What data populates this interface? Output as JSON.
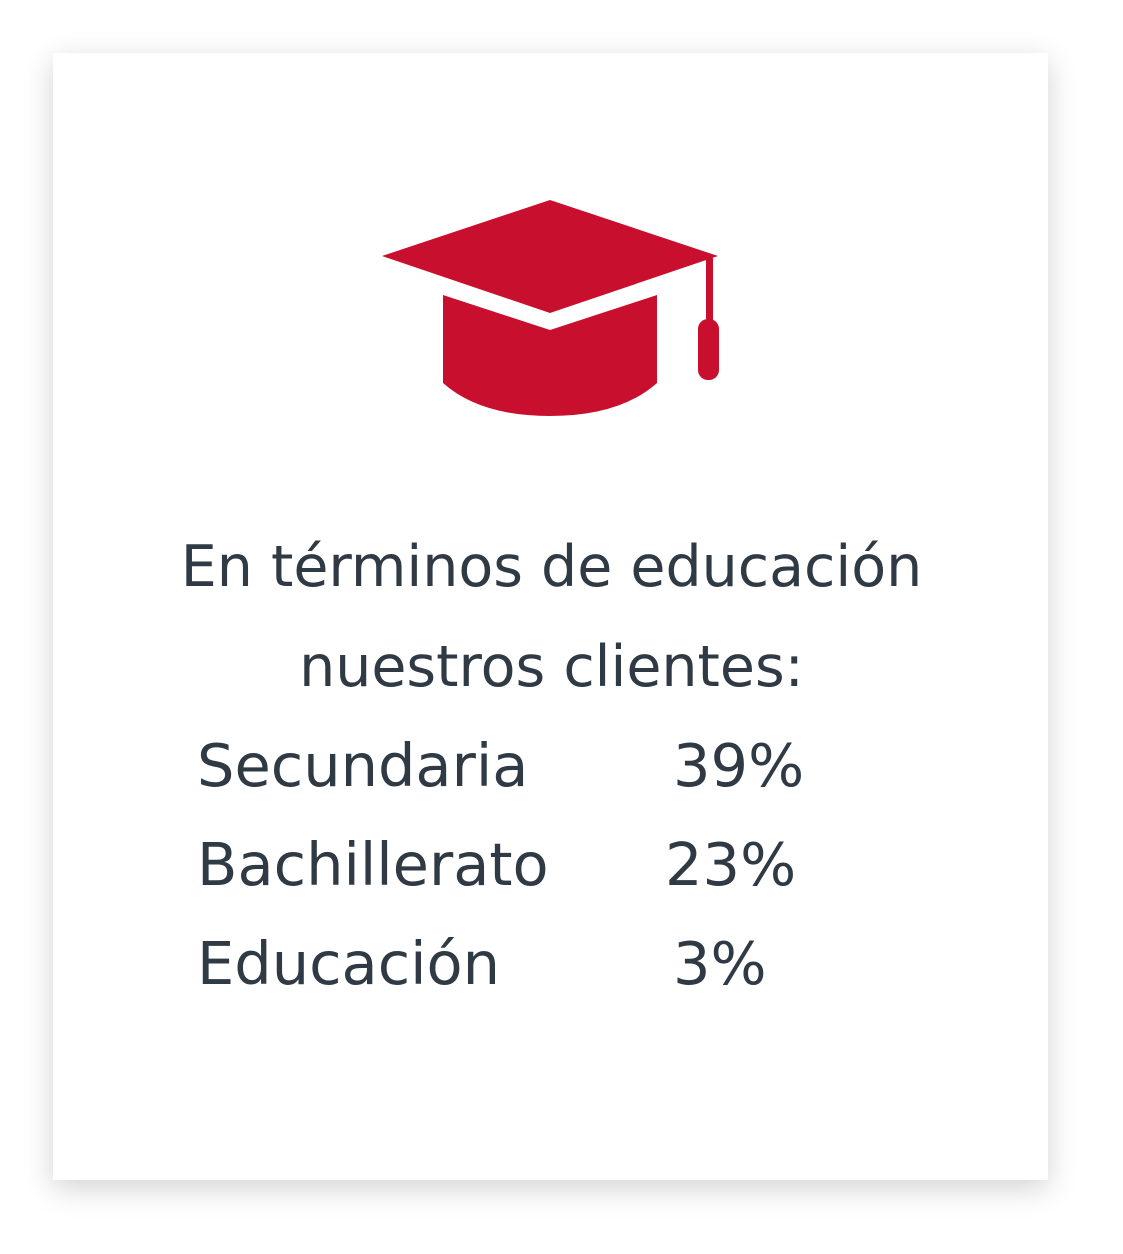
{
  "colors": {
    "accent": "#C8102E",
    "text": "#2f3a45"
  },
  "icon": "graduation-cap-icon",
  "title": {
    "line1": "En términos de educación",
    "line2": "nuestros clientes:"
  },
  "rows": [
    {
      "label": "Secundaria",
      "value": "39%"
    },
    {
      "label": "Bachillerato",
      "value": "23%"
    },
    {
      "label": "Educación",
      "value": "3%"
    }
  ]
}
